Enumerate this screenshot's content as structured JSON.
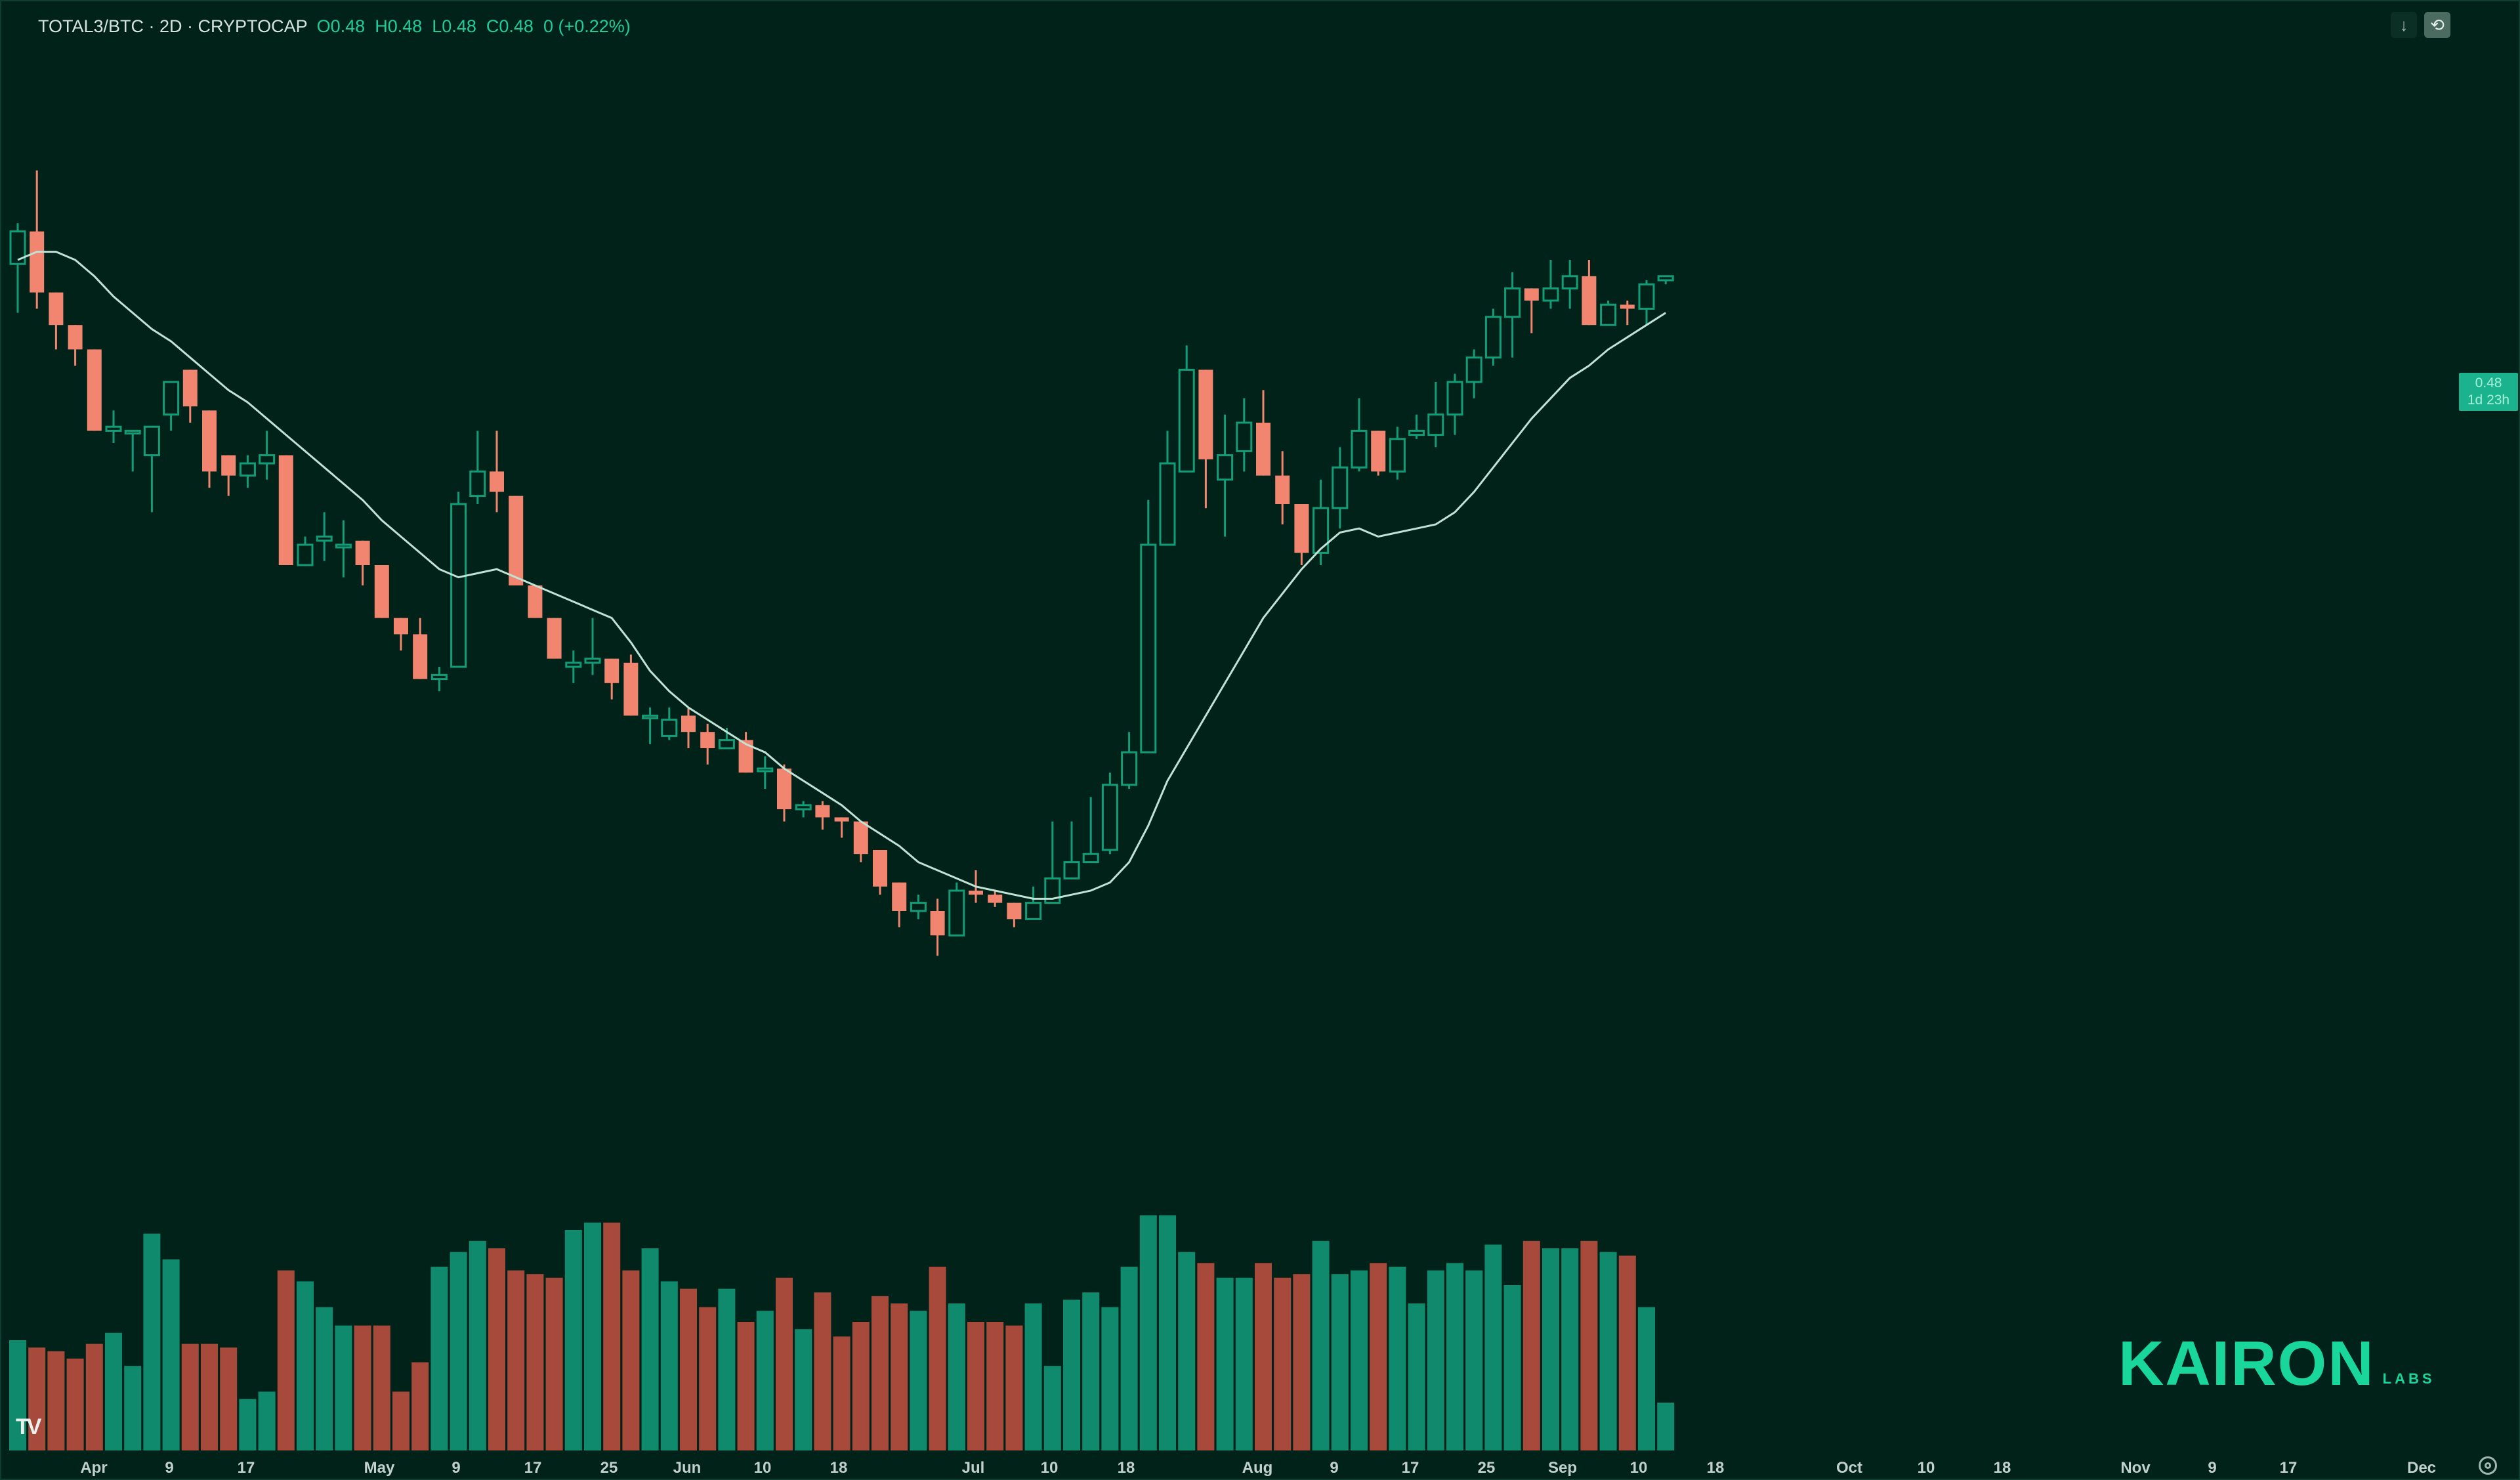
{
  "header": {
    "symbol": "TOTAL3/BTC · 2D · CRYPTOCAP",
    "open_label": "O",
    "open": "0.48",
    "high_label": "H",
    "high": "0.48",
    "low_label": "L",
    "low": "0.48",
    "close_label": "C",
    "close": "0.48",
    "change": "0 (+0.22%)"
  },
  "toolbar": {
    "download_icon": "arrow-down-icon",
    "reset_icon": "reset-view-icon"
  },
  "price_tag": {
    "value": "0.48",
    "countdown": "1d 23h"
  },
  "logo": {
    "main": "KAIRON",
    "sub": "LABS"
  },
  "watermark": "TV",
  "colors": {
    "up": "#119d78",
    "down": "#f28570",
    "vol_up": "#108a6c",
    "vol_down": "#a84a3b",
    "ma": "#bfe3d6",
    "background": "#002219"
  },
  "chart_data": {
    "type": "candlestick",
    "x_start": "2024-03-29",
    "interval_days": 2,
    "price": {
      "ylim": [
        0.375,
        0.5
      ],
      "candles": [
        [
          0.4845,
          0.4885,
          0.4785,
          0.4895
        ],
        [
          0.4885,
          0.481,
          0.479,
          0.496
        ],
        [
          0.481,
          0.477,
          0.474,
          0.481
        ],
        [
          0.477,
          0.474,
          0.472,
          0.477
        ],
        [
          0.474,
          0.464,
          0.464,
          0.474
        ],
        [
          0.464,
          0.4645,
          0.4625,
          0.4665
        ],
        [
          0.464,
          0.464,
          0.459,
          0.464
        ],
        [
          0.461,
          0.4645,
          0.454,
          0.4645
        ],
        [
          0.466,
          0.47,
          0.464,
          0.47
        ],
        [
          0.4715,
          0.467,
          0.465,
          0.4715
        ],
        [
          0.4665,
          0.459,
          0.457,
          0.4665
        ],
        [
          0.461,
          0.4585,
          0.456,
          0.461
        ],
        [
          0.4585,
          0.46,
          0.457,
          0.461
        ],
        [
          0.46,
          0.461,
          0.458,
          0.464
        ],
        [
          0.461,
          0.4475,
          0.4475,
          0.461
        ],
        [
          0.4475,
          0.45,
          0.4475,
          0.451
        ],
        [
          0.4505,
          0.451,
          0.448,
          0.454
        ],
        [
          0.45,
          0.45,
          0.446,
          0.453
        ],
        [
          0.4505,
          0.4475,
          0.445,
          0.4505
        ],
        [
          0.4475,
          0.441,
          0.441,
          0.4475
        ],
        [
          0.441,
          0.439,
          0.437,
          0.441
        ],
        [
          0.439,
          0.4335,
          0.4335,
          0.441
        ],
        [
          0.4335,
          0.434,
          0.432,
          0.435
        ],
        [
          0.435,
          0.455,
          0.435,
          0.4565
        ],
        [
          0.456,
          0.459,
          0.455,
          0.464
        ],
        [
          0.459,
          0.4565,
          0.454,
          0.464
        ],
        [
          0.456,
          0.445,
          0.445,
          0.456
        ],
        [
          0.445,
          0.441,
          0.441,
          0.445
        ],
        [
          0.441,
          0.436,
          0.436,
          0.441
        ],
        [
          0.435,
          0.4355,
          0.433,
          0.437
        ],
        [
          0.4355,
          0.436,
          0.434,
          0.441
        ],
        [
          0.436,
          0.433,
          0.431,
          0.436
        ],
        [
          0.4355,
          0.429,
          0.429,
          0.4365
        ],
        [
          0.429,
          0.429,
          0.4255,
          0.43
        ],
        [
          0.4265,
          0.4285,
          0.426,
          0.43
        ],
        [
          0.429,
          0.427,
          0.425,
          0.43
        ],
        [
          0.427,
          0.425,
          0.423,
          0.428
        ],
        [
          0.425,
          0.426,
          0.425,
          0.4275
        ],
        [
          0.426,
          0.422,
          0.422,
          0.427
        ],
        [
          0.4225,
          0.4225,
          0.42,
          0.424
        ],
        [
          0.4225,
          0.4175,
          0.416,
          0.423
        ],
        [
          0.4175,
          0.418,
          0.4165,
          0.4185
        ],
        [
          0.418,
          0.4165,
          0.415,
          0.4185
        ],
        [
          0.4165,
          0.416,
          0.414,
          0.4165
        ],
        [
          0.416,
          0.412,
          0.411,
          0.416
        ],
        [
          0.4125,
          0.408,
          0.407,
          0.4125
        ],
        [
          0.4085,
          0.405,
          0.403,
          0.4085
        ],
        [
          0.405,
          0.406,
          0.404,
          0.407
        ],
        [
          0.405,
          0.402,
          0.3995,
          0.4065
        ],
        [
          0.402,
          0.4075,
          0.402,
          0.4085
        ],
        [
          0.4075,
          0.407,
          0.406,
          0.41
        ],
        [
          0.407,
          0.406,
          0.4055,
          0.4075
        ],
        [
          0.406,
          0.404,
          0.403,
          0.406
        ],
        [
          0.404,
          0.406,
          0.404,
          0.408
        ],
        [
          0.406,
          0.409,
          0.406,
          0.416
        ],
        [
          0.409,
          0.411,
          0.409,
          0.416
        ],
        [
          0.411,
          0.412,
          0.411,
          0.419
        ],
        [
          0.4125,
          0.4205,
          0.412,
          0.422
        ],
        [
          0.4205,
          0.4245,
          0.42,
          0.427
        ],
        [
          0.4245,
          0.45,
          0.4245,
          0.4555
        ],
        [
          0.45,
          0.46,
          0.45,
          0.464
        ],
        [
          0.459,
          0.4715,
          0.459,
          0.4745
        ],
        [
          0.4715,
          0.4605,
          0.4545,
          0.4715
        ],
        [
          0.458,
          0.461,
          0.451,
          0.466
        ],
        [
          0.4615,
          0.465,
          0.459,
          0.468
        ],
        [
          0.465,
          0.4585,
          0.4585,
          0.469
        ],
        [
          0.4585,
          0.455,
          0.4525,
          0.4615
        ],
        [
          0.455,
          0.449,
          0.4475,
          0.455
        ],
        [
          0.449,
          0.4545,
          0.4475,
          0.458
        ],
        [
          0.4545,
          0.4595,
          0.452,
          0.462
        ],
        [
          0.4595,
          0.464,
          0.459,
          0.468
        ],
        [
          0.464,
          0.459,
          0.4585,
          0.464
        ],
        [
          0.459,
          0.463,
          0.458,
          0.4645
        ],
        [
          0.4635,
          0.464,
          0.463,
          0.466
        ],
        [
          0.4635,
          0.466,
          0.462,
          0.47
        ],
        [
          0.466,
          0.47,
          0.4635,
          0.471
        ],
        [
          0.47,
          0.473,
          0.468,
          0.474
        ],
        [
          0.473,
          0.478,
          0.472,
          0.479
        ],
        [
          0.478,
          0.4815,
          0.473,
          0.4835
        ],
        [
          0.4815,
          0.48,
          0.476,
          0.4815
        ],
        [
          0.48,
          0.4815,
          0.479,
          0.485
        ],
        [
          0.4815,
          0.483,
          0.479,
          0.485
        ],
        [
          0.483,
          0.477,
          0.477,
          0.485
        ],
        [
          0.477,
          0.4795,
          0.477,
          0.48
        ],
        [
          0.4795,
          0.479,
          0.477,
          0.48
        ],
        [
          0.479,
          0.482,
          0.477,
          0.4825
        ],
        [
          0.4825,
          0.483,
          0.482,
          0.483
        ]
      ],
      "moving_average": [
        0.485,
        0.486,
        0.486,
        0.485,
        0.483,
        0.4805,
        0.4785,
        0.4765,
        0.475,
        0.473,
        0.471,
        0.469,
        0.4675,
        0.4655,
        0.4635,
        0.4615,
        0.4595,
        0.4575,
        0.4555,
        0.453,
        0.451,
        0.449,
        0.447,
        0.446,
        0.4465,
        0.447,
        0.446,
        0.445,
        0.444,
        0.443,
        0.442,
        0.441,
        0.438,
        0.4345,
        0.432,
        0.43,
        0.4285,
        0.427,
        0.4255,
        0.4245,
        0.4225,
        0.421,
        0.4195,
        0.418,
        0.416,
        0.4145,
        0.413,
        0.411,
        0.41,
        0.409,
        0.408,
        0.4075,
        0.407,
        0.4065,
        0.4065,
        0.407,
        0.4075,
        0.4085,
        0.411,
        0.4155,
        0.421,
        0.425,
        0.429,
        0.433,
        0.437,
        0.441,
        0.444,
        0.447,
        0.4495,
        0.4515,
        0.452,
        0.451,
        0.4515,
        0.452,
        0.4525,
        0.454,
        0.4565,
        0.4595,
        0.4625,
        0.4655,
        0.468,
        0.4705,
        0.472,
        0.474,
        0.4755,
        0.477,
        0.4785
      ]
    },
    "volume": {
      "ylim": [
        0,
        100
      ],
      "values": [
        30,
        28,
        27,
        25,
        29,
        32,
        23,
        59,
        52,
        29,
        29,
        28,
        14,
        16,
        49,
        46,
        39,
        34,
        34,
        34,
        16,
        24,
        50,
        54,
        57,
        55,
        49,
        48,
        47,
        60,
        62,
        62,
        49,
        55,
        46,
        44,
        39,
        44,
        35,
        38,
        47,
        33,
        43,
        31,
        35,
        42,
        40,
        38,
        50,
        40,
        35,
        35,
        34,
        40,
        23,
        41,
        43,
        39,
        50,
        64,
        64,
        54,
        51,
        47,
        47,
        51,
        47,
        48,
        57,
        48,
        49,
        51,
        50,
        40,
        49,
        51,
        49,
        56,
        45,
        57,
        55,
        55,
        57,
        54,
        53,
        39,
        13
      ]
    },
    "x_ticks": [
      "Apr",
      "9",
      "17",
      "May",
      "9",
      "17",
      "25",
      "Jun",
      "10",
      "18",
      "Jul",
      "10",
      "18",
      "Aug",
      "9",
      "17",
      "25",
      "Sep",
      "10",
      "18",
      "Oct",
      "10",
      "18",
      "Nov",
      "9",
      "17",
      "Dec"
    ]
  }
}
